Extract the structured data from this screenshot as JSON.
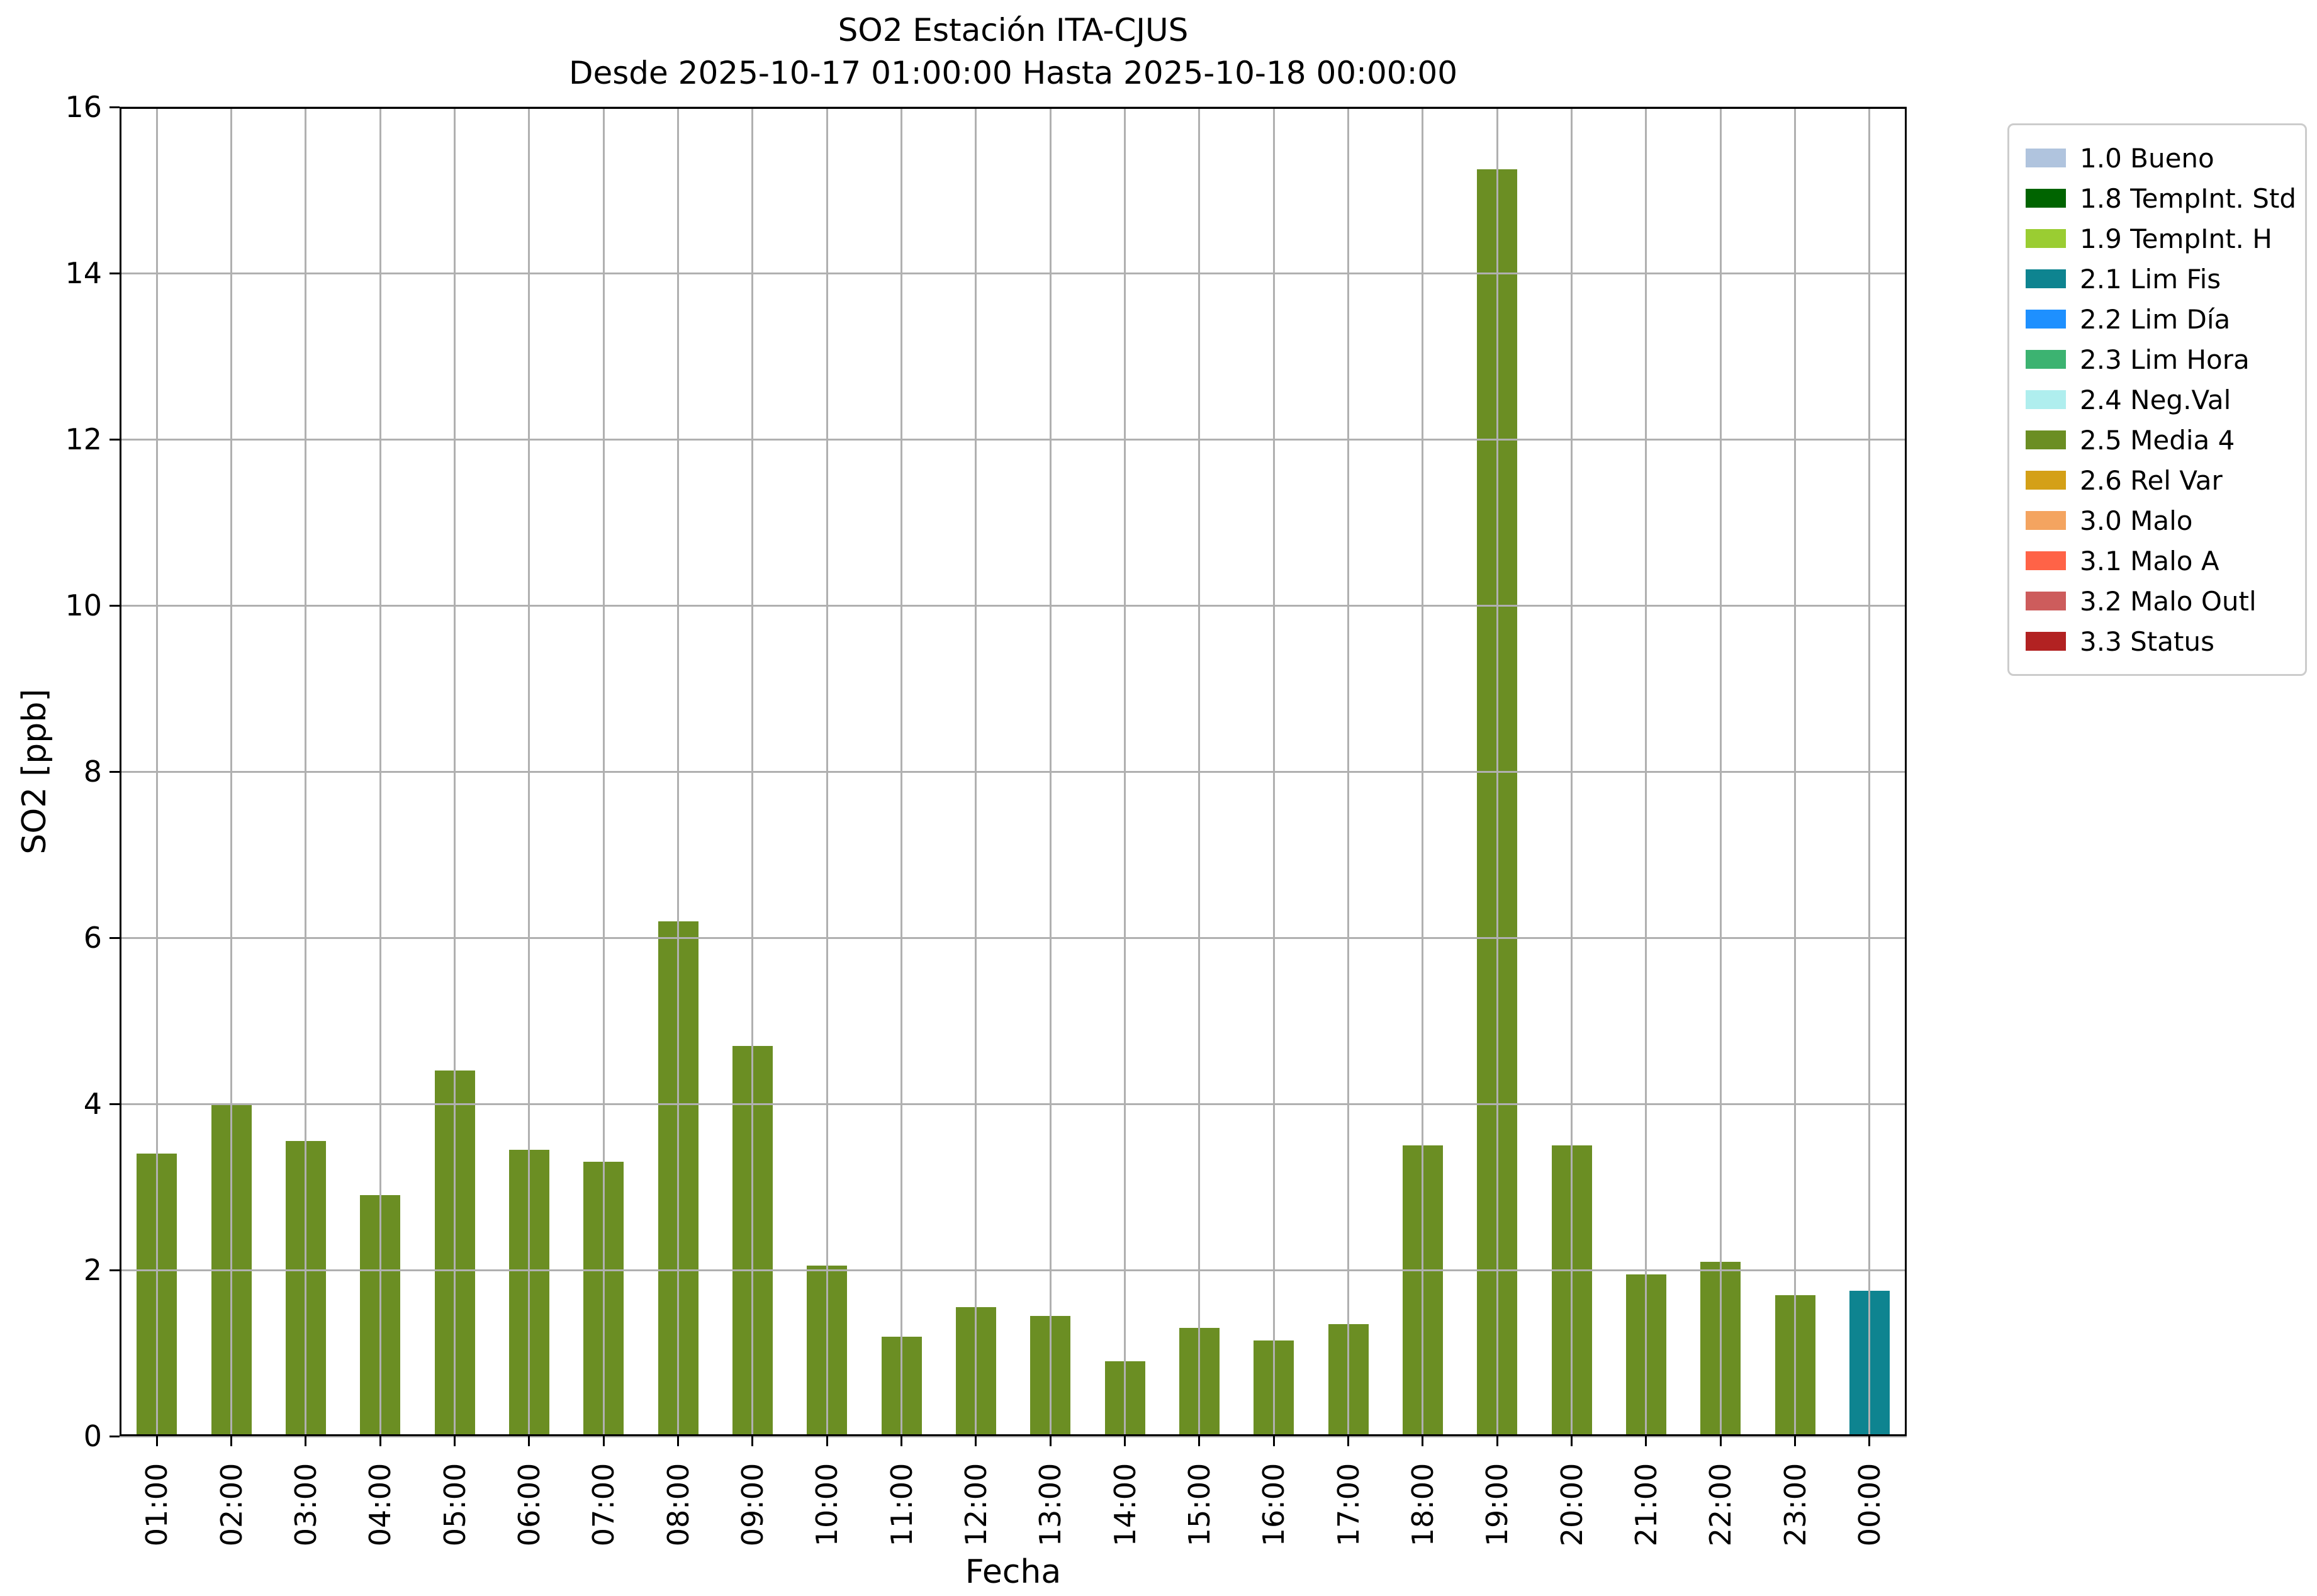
{
  "header": {
    "title": "SO2 Estación ITA-CJUS",
    "subtitle": "Desde 2025-10-17 01:00:00 Hasta 2025-10-18 00:00:00"
  },
  "chart_data": {
    "type": "bar",
    "title": "SO2 Estación ITA-CJUS",
    "subtitle": "Desde 2025-10-17 01:00:00 Hasta 2025-10-18 00:00:00",
    "xlabel": "Fecha",
    "ylabel": "SO2 [ppb]",
    "ylim": [
      0,
      16
    ],
    "yticks": [
      0,
      2,
      4,
      6,
      8,
      10,
      12,
      14,
      16
    ],
    "grid": true,
    "legend_position": "outside upper right",
    "categories": [
      "01:00",
      "02:00",
      "03:00",
      "04:00",
      "05:00",
      "06:00",
      "07:00",
      "08:00",
      "09:00",
      "10:00",
      "11:00",
      "12:00",
      "13:00",
      "14:00",
      "15:00",
      "16:00",
      "17:00",
      "18:00",
      "19:00",
      "20:00",
      "21:00",
      "22:00",
      "23:00",
      "00:00"
    ],
    "series": [
      {
        "name": "SO2",
        "values": [
          3.4,
          4.0,
          3.55,
          2.9,
          4.4,
          3.45,
          3.3,
          6.2,
          4.7,
          2.05,
          1.2,
          1.55,
          1.45,
          0.9,
          1.3,
          1.15,
          1.35,
          3.5,
          15.25,
          3.5,
          1.95,
          2.1,
          1.7,
          1.75
        ]
      }
    ],
    "bar_status": [
      "2.5 Media 4",
      "2.5 Media 4",
      "2.5 Media 4",
      "2.5 Media 4",
      "2.5 Media 4",
      "2.5 Media 4",
      "2.5 Media 4",
      "2.5 Media 4",
      "2.5 Media 4",
      "2.5 Media 4",
      "2.5 Media 4",
      "2.5 Media 4",
      "2.5 Media 4",
      "2.5 Media 4",
      "2.5 Media 4",
      "2.5 Media 4",
      "2.5 Media 4",
      "2.5 Media 4",
      "2.5 Media 4",
      "2.5 Media 4",
      "2.5 Media 4",
      "2.5 Media 4",
      "2.5 Media 4",
      "2.1 Lim Fis"
    ],
    "legend": [
      {
        "label": "1.0 Bueno",
        "color": "#b0c4de"
      },
      {
        "label": "1.8 TempInt. Std",
        "color": "#006400"
      },
      {
        "label": "1.9 TempInt. H",
        "color": "#9acd32"
      },
      {
        "label": "2.1 Lim Fis",
        "color": "#0e8490"
      },
      {
        "label": "2.2 Lim Día",
        "color": "#1e90ff"
      },
      {
        "label": "2.3 Lim Hora",
        "color": "#3cb371"
      },
      {
        "label": "2.4 Neg.Val",
        "color": "#afeeee"
      },
      {
        "label": "2.5 Media 4",
        "color": "#6b8e23"
      },
      {
        "label": "2.6 Rel Var",
        "color": "#d4a017"
      },
      {
        "label": "3.0 Malo",
        "color": "#f4a460"
      },
      {
        "label": "3.1 Malo A",
        "color": "#ff6347"
      },
      {
        "label": "3.2 Malo Outl",
        "color": "#cd5c5c"
      },
      {
        "label": "3.3 Status",
        "color": "#b22222"
      }
    ]
  }
}
